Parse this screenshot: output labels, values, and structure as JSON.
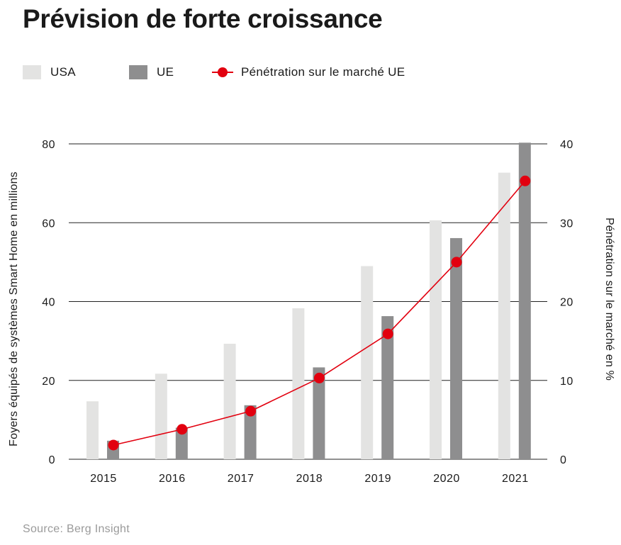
{
  "chart_data": {
    "type": "bar",
    "title": "Prévision de forte croissance",
    "categories": [
      "2015",
      "2016",
      "2017",
      "2018",
      "2019",
      "2020",
      "2021"
    ],
    "series": [
      {
        "name": "USA",
        "kind": "bar",
        "axis": "left",
        "color": "#e3e3e2",
        "values": [
          14.7,
          21.7,
          29.3,
          38.3,
          49,
          60.6,
          72.7
        ]
      },
      {
        "name": "UE",
        "kind": "bar",
        "axis": "left",
        "color": "#8e8e8f",
        "values": [
          4.7,
          8,
          13.7,
          23.3,
          36.3,
          56.1,
          80.3
        ]
      },
      {
        "name": "Pénétration sur le marché UE",
        "kind": "line",
        "axis": "right",
        "color": "#e2000f",
        "values": [
          1.8,
          3.8,
          6.1,
          10.3,
          15.9,
          25,
          35.3
        ]
      }
    ],
    "left_axis": {
      "label": "Foyers équipés de systèmes Smart Home en millions",
      "ticks": [
        "0",
        "20",
        "40",
        "60",
        "80"
      ],
      "range": [
        0,
        80
      ]
    },
    "right_axis": {
      "label": "Pénétration sur le marché en %",
      "ticks": [
        "0",
        "10",
        "20",
        "30",
        "40"
      ],
      "range": [
        0,
        40
      ]
    },
    "grid": true,
    "legend_position": "top-left",
    "source": "Source: Berg Insight"
  }
}
